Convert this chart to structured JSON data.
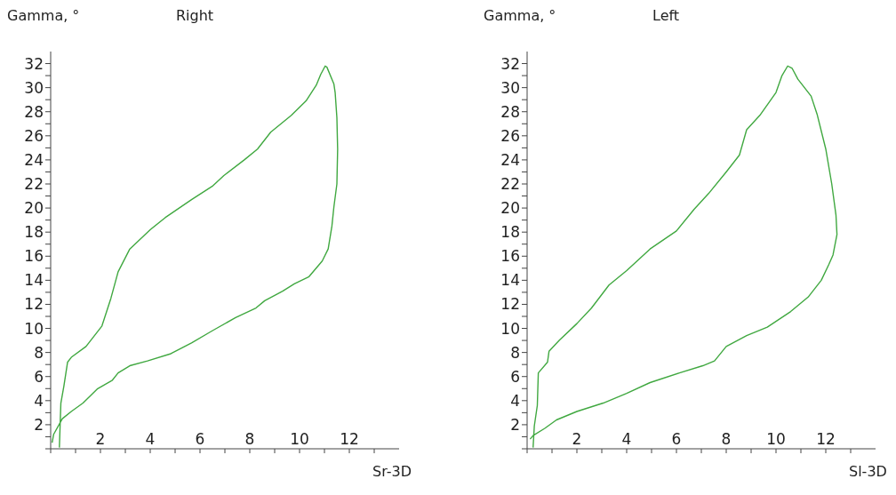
{
  "chart_data": [
    {
      "type": "line",
      "title": "Right",
      "xlabel": "Sr-3D",
      "ylabel": "Gamma, °",
      "xlim": [
        0,
        14
      ],
      "ylim": [
        0,
        33
      ],
      "xticks": [
        {
          "value": 0,
          "label": null
        },
        {
          "value": 1,
          "label": null
        },
        2,
        {
          "value": 3,
          "label": null
        },
        4,
        {
          "value": 5,
          "label": null
        },
        6,
        {
          "value": 7,
          "label": null
        },
        8,
        {
          "value": 9,
          "label": null
        },
        10,
        {
          "value": 11,
          "label": null
        },
        12,
        {
          "value": 13,
          "label": null
        }
      ],
      "yticks": [
        {
          "value": 0,
          "label": null
        },
        {
          "value": 1,
          "label": null
        },
        2,
        {
          "value": 3,
          "label": null
        },
        4,
        {
          "value": 5,
          "label": null
        },
        6,
        {
          "value": 7,
          "label": null
        },
        8,
        {
          "value": 9,
          "label": null
        },
        10,
        {
          "value": 11,
          "label": null
        },
        12,
        {
          "value": 13,
          "label": null
        },
        14,
        {
          "value": 15,
          "label": null
        },
        16,
        {
          "value": 17,
          "label": null
        },
        18,
        {
          "value": 19,
          "label": null
        },
        20,
        {
          "value": 21,
          "label": null
        },
        22,
        {
          "value": 23,
          "label": null
        },
        24,
        {
          "value": 25,
          "label": null
        },
        26,
        {
          "value": 27,
          "label": null
        },
        28,
        {
          "value": 29,
          "label": null
        },
        30,
        {
          "value": 31,
          "label": null
        },
        32
      ],
      "series": [
        {
          "color": "#40a840",
          "x": [
            0.35,
            0.41,
            0.53,
            0.68,
            0.83,
            1.42,
            2.06,
            2.42,
            2.71,
            3.18,
            4.0,
            4.6,
            5.66,
            6.49,
            6.96,
            7.78,
            8.31,
            8.84,
            9.67,
            10.26,
            10.67,
            10.85,
            11.03,
            11.1,
            11.38,
            11.43,
            11.5,
            11.53,
            11.5,
            11.38,
            11.3,
            11.15,
            10.91,
            10.38,
            9.79,
            9.32,
            8.6,
            8.25,
            7.43,
            6.49,
            5.66,
            4.83,
            3.89,
            3.18,
            2.71,
            2.48,
            1.89,
            1.3,
            0.83,
            0.47,
            0.12,
            0.06
          ],
          "values": [
            0.1,
            3.8,
            5.2,
            7.2,
            7.6,
            8.5,
            10.2,
            12.5,
            14.7,
            16.6,
            18.2,
            19.2,
            20.7,
            21.8,
            22.7,
            24.0,
            24.9,
            26.3,
            27.7,
            28.9,
            30.2,
            31.1,
            31.8,
            31.7,
            30.3,
            29.6,
            27.5,
            24.9,
            22.0,
            20.1,
            18.5,
            16.6,
            15.6,
            14.3,
            13.7,
            13.1,
            12.3,
            11.7,
            10.9,
            9.8,
            8.8,
            7.9,
            7.3,
            6.9,
            6.3,
            5.7,
            5.0,
            3.8,
            3.1,
            2.5,
            1.2,
            0.5
          ]
        }
      ]
    },
    {
      "type": "line",
      "title": "Left",
      "xlabel": "Sl-3D",
      "ylabel": "Gamma, °",
      "xlim": [
        0,
        14
      ],
      "ylim": [
        0,
        33
      ],
      "xticks": [
        {
          "value": 0,
          "label": null
        },
        {
          "value": 1,
          "label": null
        },
        2,
        {
          "value": 3,
          "label": null
        },
        4,
        {
          "value": 5,
          "label": null
        },
        6,
        {
          "value": 7,
          "label": null
        },
        8,
        {
          "value": 9,
          "label": null
        },
        10,
        {
          "value": 11,
          "label": null
        },
        12,
        {
          "value": 13,
          "label": null
        }
      ],
      "yticks": [
        {
          "value": 0,
          "label": null
        },
        {
          "value": 1,
          "label": null
        },
        2,
        {
          "value": 3,
          "label": null
        },
        4,
        {
          "value": 5,
          "label": null
        },
        6,
        {
          "value": 7,
          "label": null
        },
        8,
        {
          "value": 9,
          "label": null
        },
        10,
        {
          "value": 11,
          "label": null
        },
        12,
        {
          "value": 13,
          "label": null
        },
        14,
        {
          "value": 15,
          "label": null
        },
        16,
        {
          "value": 17,
          "label": null
        },
        18,
        {
          "value": 19,
          "label": null
        },
        20,
        {
          "value": 21,
          "label": null
        },
        22,
        {
          "value": 23,
          "label": null
        },
        24,
        {
          "value": 25,
          "label": null
        },
        26,
        {
          "value": 27,
          "label": null
        },
        28,
        {
          "value": 29,
          "label": null
        },
        30,
        {
          "value": 31,
          "label": null
        },
        32
      ],
      "series": [
        {
          "color": "#40a840",
          "x": [
            0.24,
            0.29,
            0.41,
            0.45,
            0.82,
            0.88,
            1.29,
            2.0,
            2.59,
            3.29,
            4.0,
            4.94,
            6.0,
            6.71,
            7.29,
            8.0,
            8.53,
            8.82,
            9.35,
            10.0,
            10.24,
            10.47,
            10.65,
            10.88,
            11.41,
            11.65,
            12.0,
            12.24,
            12.41,
            12.45,
            12.29,
            12.12,
            11.82,
            11.29,
            10.59,
            9.65,
            8.82,
            8.0,
            7.53,
            7.06,
            6.12,
            4.94,
            4.0,
            3.06,
            2.0,
            1.18,
            0.71,
            0.24,
            0.12
          ],
          "values": [
            0.1,
            1.9,
            3.6,
            6.3,
            7.2,
            8.1,
            9.0,
            10.4,
            11.7,
            13.6,
            14.8,
            16.6,
            18.1,
            19.9,
            21.2,
            23.0,
            24.4,
            26.5,
            27.7,
            29.6,
            31.0,
            31.8,
            31.6,
            30.7,
            29.3,
            27.8,
            24.9,
            22.0,
            19.4,
            17.8,
            16.1,
            15.3,
            14.0,
            12.6,
            11.4,
            10.1,
            9.4,
            8.5,
            7.3,
            6.9,
            6.3,
            5.5,
            4.6,
            3.8,
            3.1,
            2.4,
            1.7,
            1.1,
            0.8
          ]
        }
      ]
    }
  ]
}
